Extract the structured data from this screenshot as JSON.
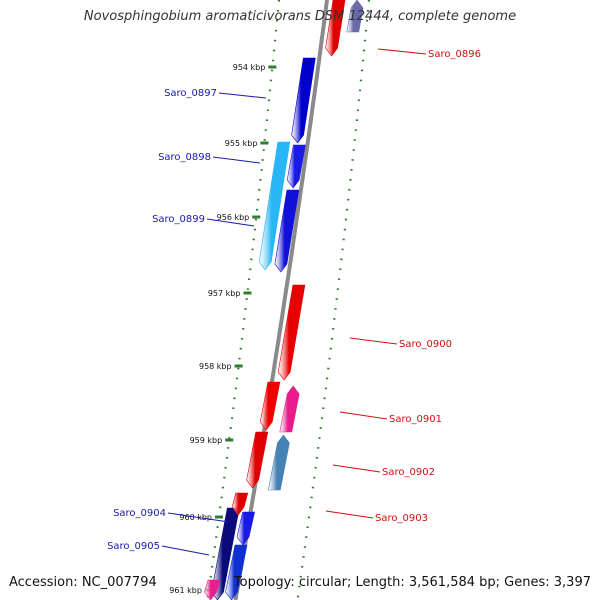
{
  "title": "Novosphingobium aromaticivorans DSM 12444, complete genome",
  "footer": {
    "accession": "Accession: NC_007794",
    "summary": "Topology: circular; Length: 3,561,584 bp; Genes: 3,397"
  },
  "colors": {
    "backbone": "#8a8a8a",
    "tick": "#2e7d32",
    "forward_label": "#1a1aa8",
    "reverse_label": "#d01010"
  },
  "ticks": [
    "954 kbp",
    "955 kbp",
    "956 kbp",
    "957 kbp",
    "958 kbp",
    "959 kbp",
    "960 kbp",
    "961 kbp"
  ],
  "genes": {
    "forward": [
      {
        "name": "Saro_0897",
        "color": "#0000cc"
      },
      {
        "name": "Saro_0898",
        "color": "#1a1ae6"
      },
      {
        "name": "Saro_0899",
        "color": "#1010d8"
      },
      {
        "name": "Saro_0904",
        "color": "#0a0a7a"
      },
      {
        "name": "Saro_0905",
        "color": "#1a1ae6"
      }
    ],
    "forward_unlabeled": [
      {
        "color": "#29b6f6"
      },
      {
        "color": "#0f2fd0"
      },
      {
        "color": "#e91e8c"
      }
    ],
    "reverse": [
      {
        "name": "Saro_0896",
        "color": "#e00000"
      },
      {
        "name": "Saro_0900",
        "color": "#e60000"
      },
      {
        "name": "Saro_0901",
        "color": "#e81c8c"
      },
      {
        "name": "Saro_0902",
        "color": "#4682b4"
      },
      {
        "name": "Saro_0903",
        "color": "#e00000"
      }
    ],
    "reverse_unlabeled": [
      {
        "color": "#f00000"
      },
      {
        "color": "#e00000"
      },
      {
        "color": "#6a6aa8"
      }
    ]
  }
}
